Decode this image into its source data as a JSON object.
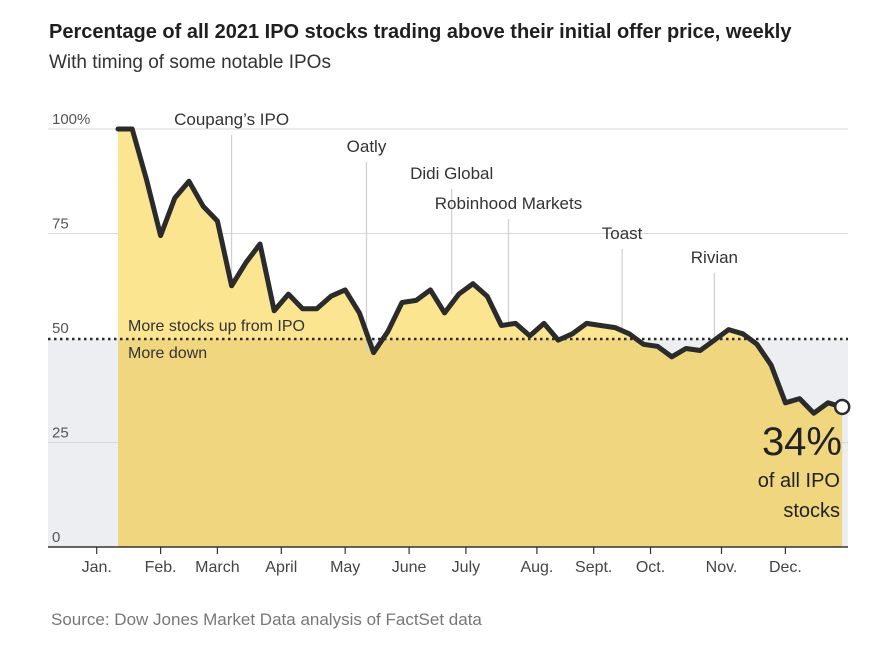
{
  "title": "Percentage of all 2021 IPO stocks trading above their initial offer price, weekly",
  "subtitle": "With timing of some notable IPOs",
  "source": "Source: Dow Jones Market Data analysis of FactSet data",
  "chart_data": {
    "type": "area",
    "ylim": [
      0,
      100
    ],
    "yticks": [
      {
        "value": 100,
        "label": "100%"
      },
      {
        "value": 75,
        "label": "75"
      },
      {
        "value": 50,
        "label": "50"
      },
      {
        "value": 25,
        "label": "25"
      },
      {
        "value": 0,
        "label": "0"
      }
    ],
    "months": [
      {
        "label": "Jan.",
        "week": -1.5
      },
      {
        "label": "Feb.",
        "week": 3
      },
      {
        "label": "March",
        "week": 7
      },
      {
        "label": "April",
        "week": 11.5
      },
      {
        "label": "May",
        "week": 16
      },
      {
        "label": "June",
        "week": 20.5
      },
      {
        "label": "July",
        "week": 24.5
      },
      {
        "label": "Aug.",
        "week": 29.5
      },
      {
        "label": "Sept.",
        "week": 33.5
      },
      {
        "label": "Oct.",
        "week": 37.5
      },
      {
        "label": "Nov.",
        "week": 42.5
      },
      {
        "label": "Dec.",
        "week": 47
      }
    ],
    "values": [
      100,
      100,
      88,
      74.5,
      83.5,
      87.5,
      81.5,
      78,
      62.5,
      68,
      72.5,
      56.5,
      60.5,
      57,
      57,
      60,
      61.5,
      56,
      46.5,
      51.5,
      58.5,
      59,
      61.5,
      56,
      60.5,
      63,
      60,
      53,
      53.5,
      50.5,
      53.5,
      49.5,
      51,
      53.5,
      53,
      52.5,
      51,
      48.5,
      48,
      45.5,
      47.5,
      47,
      49.5,
      52,
      51,
      48.5,
      43.5,
      34.5,
      35.5,
      32,
      34.5,
      33.5
    ],
    "threshold": {
      "value": 50,
      "label_above": "More stocks up from IPO",
      "label_below": "More down"
    },
    "annotations": [
      {
        "label": "Coupang’s IPO",
        "week": 8
      },
      {
        "label": "Oatly",
        "week": 17.5
      },
      {
        "label": "Didi Global",
        "week": 23.5
      },
      {
        "label": "Robinhood Markets",
        "week": 27.5
      },
      {
        "label": "Toast",
        "week": 35.5
      },
      {
        "label": "Rivian",
        "week": 42
      }
    ],
    "end_label": {
      "value": "34%",
      "text_line1": "of all IPO",
      "text_line2": "stocks"
    },
    "colors": {
      "area": "#f0d77f",
      "area_upper": "#fbe591",
      "below_band": "#eceef1",
      "line": "#2b2b2b",
      "grid": "#d9d9d9",
      "axis": "#333333"
    }
  }
}
